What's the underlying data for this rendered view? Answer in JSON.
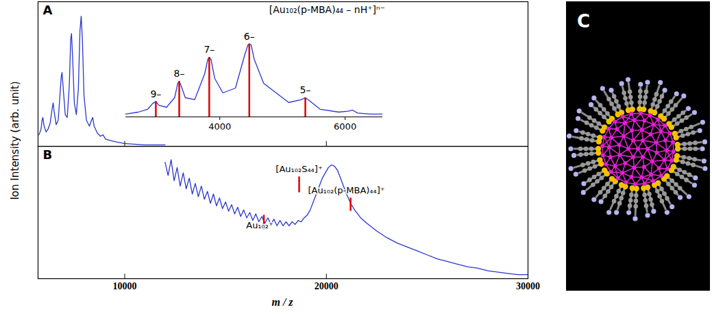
{
  "chart_data": [
    {
      "type": "line",
      "title": "A",
      "ylabel": "Ion Intensity (arb. unit)",
      "x": [
        5750,
        5850,
        5900,
        5940,
        6000,
        6100,
        6200,
        6300,
        6400,
        6450,
        6500,
        6600,
        6700,
        6800,
        6850,
        6890,
        6950,
        7050,
        7150,
        7250,
        7320,
        7360,
        7420,
        7500,
        7600,
        7700,
        7780,
        7840,
        7900,
        7980,
        8100,
        8250,
        8350,
        8410,
        8480,
        8650,
        8800,
        8920,
        9050,
        9300,
        9600,
        10000,
        10500,
        11000,
        12000
      ],
      "values": [
        8,
        12,
        18,
        20,
        14,
        10,
        12,
        16,
        26,
        30,
        24,
        15,
        18,
        38,
        48,
        51,
        40,
        22,
        20,
        42,
        74,
        78,
        60,
        30,
        22,
        40,
        80,
        90,
        74,
        35,
        18,
        14,
        18,
        20,
        14,
        9,
        7,
        8,
        5,
        4,
        3,
        2,
        1.5,
        1,
        1
      ],
      "color": "#2a35d0",
      "xlim": [
        5700,
        30000
      ],
      "ylim": [
        0,
        100
      ],
      "xticks": [
        10000,
        20000,
        30000
      ],
      "tick_labels": false
    },
    {
      "type": "line",
      "title": "[Au₁₀₂(p-MBA)₄₄ – nH⁺]ⁿ⁻",
      "x": [
        2500,
        2700,
        2850,
        2930,
        2980,
        3030,
        3150,
        3280,
        3330,
        3353,
        3380,
        3450,
        3600,
        3760,
        3810,
        3832,
        3860,
        3920,
        4050,
        4250,
        4400,
        4450,
        4471,
        4500,
        4550,
        4700,
        4900,
        5100,
        5300,
        5365,
        5430,
        5600,
        5900,
        6050,
        6120,
        6200,
        6400,
        6600
      ],
      "values": [
        3,
        5,
        8,
        14,
        16,
        12,
        10,
        20,
        35,
        37,
        33,
        20,
        18,
        45,
        60,
        62,
        60,
        40,
        25,
        30,
        65,
        75,
        76,
        75,
        60,
        35,
        25,
        15,
        18,
        20,
        17,
        8,
        5,
        6,
        7,
        4,
        3,
        3
      ],
      "color": "#2a35d0",
      "xlim": [
        2500,
        6600
      ],
      "ylim": [
        0,
        100
      ],
      "xticks": [
        4000,
        6000
      ],
      "tick_labels": "x",
      "annotations": [
        {
          "label": "9–",
          "x": 2980,
          "y": 16,
          "color": "#e00000"
        },
        {
          "label": "8–",
          "x": 3353,
          "y": 37,
          "color": "#e00000"
        },
        {
          "label": "7–",
          "x": 3832,
          "y": 62,
          "color": "#e00000"
        },
        {
          "label": "6–",
          "x": 4471,
          "y": 76,
          "color": "#e00000"
        },
        {
          "label": "5–",
          "x": 5365,
          "y": 20,
          "color": "#e00000"
        }
      ]
    },
    {
      "type": "line",
      "title": "B",
      "xlabel": "m / z",
      "x": [
        12000,
        12150,
        12300,
        12450,
        12600,
        12750,
        12900,
        13050,
        13200,
        13350,
        13500,
        13650,
        13800,
        13950,
        14100,
        14250,
        14400,
        14550,
        14700,
        14850,
        15000,
        15150,
        15300,
        15450,
        15600,
        15750,
        15900,
        16050,
        16200,
        16350,
        16500,
        16650,
        16800,
        16950,
        17100,
        17250,
        17400,
        17550,
        17700,
        17850,
        18000,
        18150,
        18300,
        18450,
        18600,
        18750,
        18900,
        19050,
        19200,
        19350,
        19500,
        19650,
        19800,
        19950,
        20100,
        20250,
        20400,
        20550,
        20700,
        20850,
        21000,
        21200,
        21400,
        21700,
        22000,
        22500,
        23000,
        23500,
        24000,
        24500,
        25000,
        25500,
        26000,
        26500,
        27000,
        27500,
        28000,
        28500,
        29000,
        29500,
        30000
      ],
      "values": [
        88,
        78,
        90,
        74,
        84,
        70,
        80,
        68,
        76,
        64,
        72,
        62,
        70,
        60,
        66,
        57,
        64,
        55,
        61,
        53,
        58,
        51,
        56,
        49,
        54,
        47,
        52,
        46,
        50,
        44,
        49,
        43,
        47,
        42,
        46,
        41,
        45,
        40,
        44,
        40,
        43,
        40,
        43,
        41,
        44,
        43,
        46,
        48,
        52,
        58,
        64,
        70,
        76,
        80,
        84,
        86,
        85,
        82,
        76,
        70,
        64,
        57,
        52,
        46,
        42,
        36,
        31,
        27,
        24,
        21,
        18,
        15,
        13,
        11,
        9,
        8,
        6,
        5,
        4,
        3,
        3
      ],
      "color": "#2a35d0",
      "xlim": [
        5700,
        30000
      ],
      "ylim": [
        0,
        100
      ],
      "xticks": [
        10000,
        20000,
        30000
      ],
      "tick_labels": "x",
      "annotations": [
        {
          "label": "Au₁₀₂⁺",
          "x": 16900,
          "y": [
            37,
            48
          ],
          "color": "#e00000"
        },
        {
          "label": "[Au₁₀₂S₄₄]⁺",
          "x": 18650,
          "y": [
            65,
            77
          ],
          "color": "#e00000"
        },
        {
          "label": "[Au₁₀₂(p-MBA)₄₄]⁺",
          "x": 21200,
          "y": [
            51,
            61
          ],
          "color": "#e00000"
        }
      ]
    }
  ],
  "image": {
    "title": "C"
  }
}
